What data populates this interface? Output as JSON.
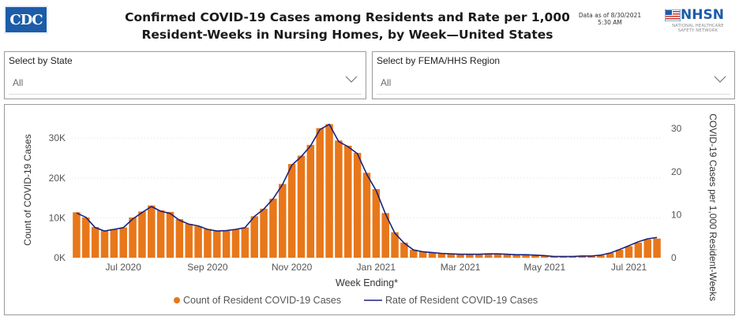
{
  "header": {
    "logo_text": "CDC",
    "title_line1": "Confirmed COVID-19 Cases among Residents and Rate per 1,000",
    "title_line2": "Resident-Weeks in Nursing Homes, by Week—United States",
    "as_of_line1": "Data as of 8/30/2021",
    "as_of_line2": "5:30 AM",
    "nhsn_name": "NHSN",
    "nhsn_sub_line1": "NATIONAL HEALTHCARE",
    "nhsn_sub_line2": "SAFETY NETWORK"
  },
  "filters": {
    "state": {
      "label": "Select by State",
      "value": "All"
    },
    "region": {
      "label": "Select by FEMA/HHS Region",
      "value": "All"
    }
  },
  "colors": {
    "bar": "#e8771a",
    "line": "#1a237e",
    "brand": "#1d5ca8"
  },
  "chart_data": {
    "type": "bar",
    "combo_secondary_type": "line",
    "xlabel": "Week Ending*",
    "ylabel": "Count of COVID-19 Cases",
    "y2label": "COVID-19 Cases per 1,000 Resident-Weeks",
    "ylim": [
      0,
      34000
    ],
    "y2lim": [
      0,
      31.5
    ],
    "y_ticks": [
      "0K",
      "10K",
      "20K",
      "30K"
    ],
    "y_tick_values": [
      0,
      10000,
      20000,
      30000
    ],
    "y2_ticks": [
      "0",
      "10",
      "20",
      "30"
    ],
    "y2_tick_values": [
      0,
      10,
      20,
      30
    ],
    "x_ticks": [
      "Jul 2020",
      "Sep 2020",
      "Nov 2020",
      "Jan 2021",
      "Mar 2021",
      "May 2021",
      "Jul 2021"
    ],
    "x_tick_week_index": [
      5,
      14,
      23,
      32,
      41,
      50,
      59
    ],
    "grid": true,
    "legend_position": "bottom",
    "series": [
      {
        "name": "Count of Resident COVID-19 Cases",
        "type": "bar",
        "values": [
          11400,
          10100,
          7700,
          6800,
          7200,
          7600,
          10100,
          11600,
          13100,
          11900,
          11500,
          9700,
          8500,
          7900,
          7200,
          6700,
          6800,
          7100,
          7600,
          10400,
          12300,
          14800,
          18500,
          23500,
          25600,
          28300,
          32500,
          33500,
          29400,
          28100,
          26300,
          21300,
          17200,
          11200,
          6400,
          3800,
          2000,
          1600,
          1300,
          1100,
          1000,
          900,
          900,
          900,
          1000,
          1000,
          900,
          800,
          800,
          700,
          600,
          400,
          300,
          300,
          400,
          400,
          600,
          1200,
          2000,
          2900,
          3800,
          4600,
          4800
        ]
      },
      {
        "name": "Rate of Resident COVID-19 Cases",
        "type": "line",
        "values": [
          10.4,
          9.4,
          7.0,
          6.2,
          6.6,
          7.0,
          9.0,
          10.5,
          11.9,
          10.8,
          10.3,
          8.7,
          7.8,
          7.4,
          6.6,
          6.2,
          6.3,
          6.6,
          7.0,
          9.6,
          11.3,
          13.7,
          17.0,
          21.5,
          23.5,
          26.0,
          29.8,
          31.0,
          27.0,
          25.8,
          24.2,
          19.4,
          15.6,
          10.2,
          5.7,
          3.4,
          1.8,
          1.4,
          1.2,
          1.0,
          0.9,
          0.8,
          0.8,
          0.8,
          0.9,
          0.9,
          0.8,
          0.7,
          0.7,
          0.6,
          0.5,
          0.3,
          0.3,
          0.3,
          0.4,
          0.4,
          0.6,
          1.1,
          1.9,
          2.8,
          3.7,
          4.4,
          4.7
        ]
      }
    ]
  }
}
